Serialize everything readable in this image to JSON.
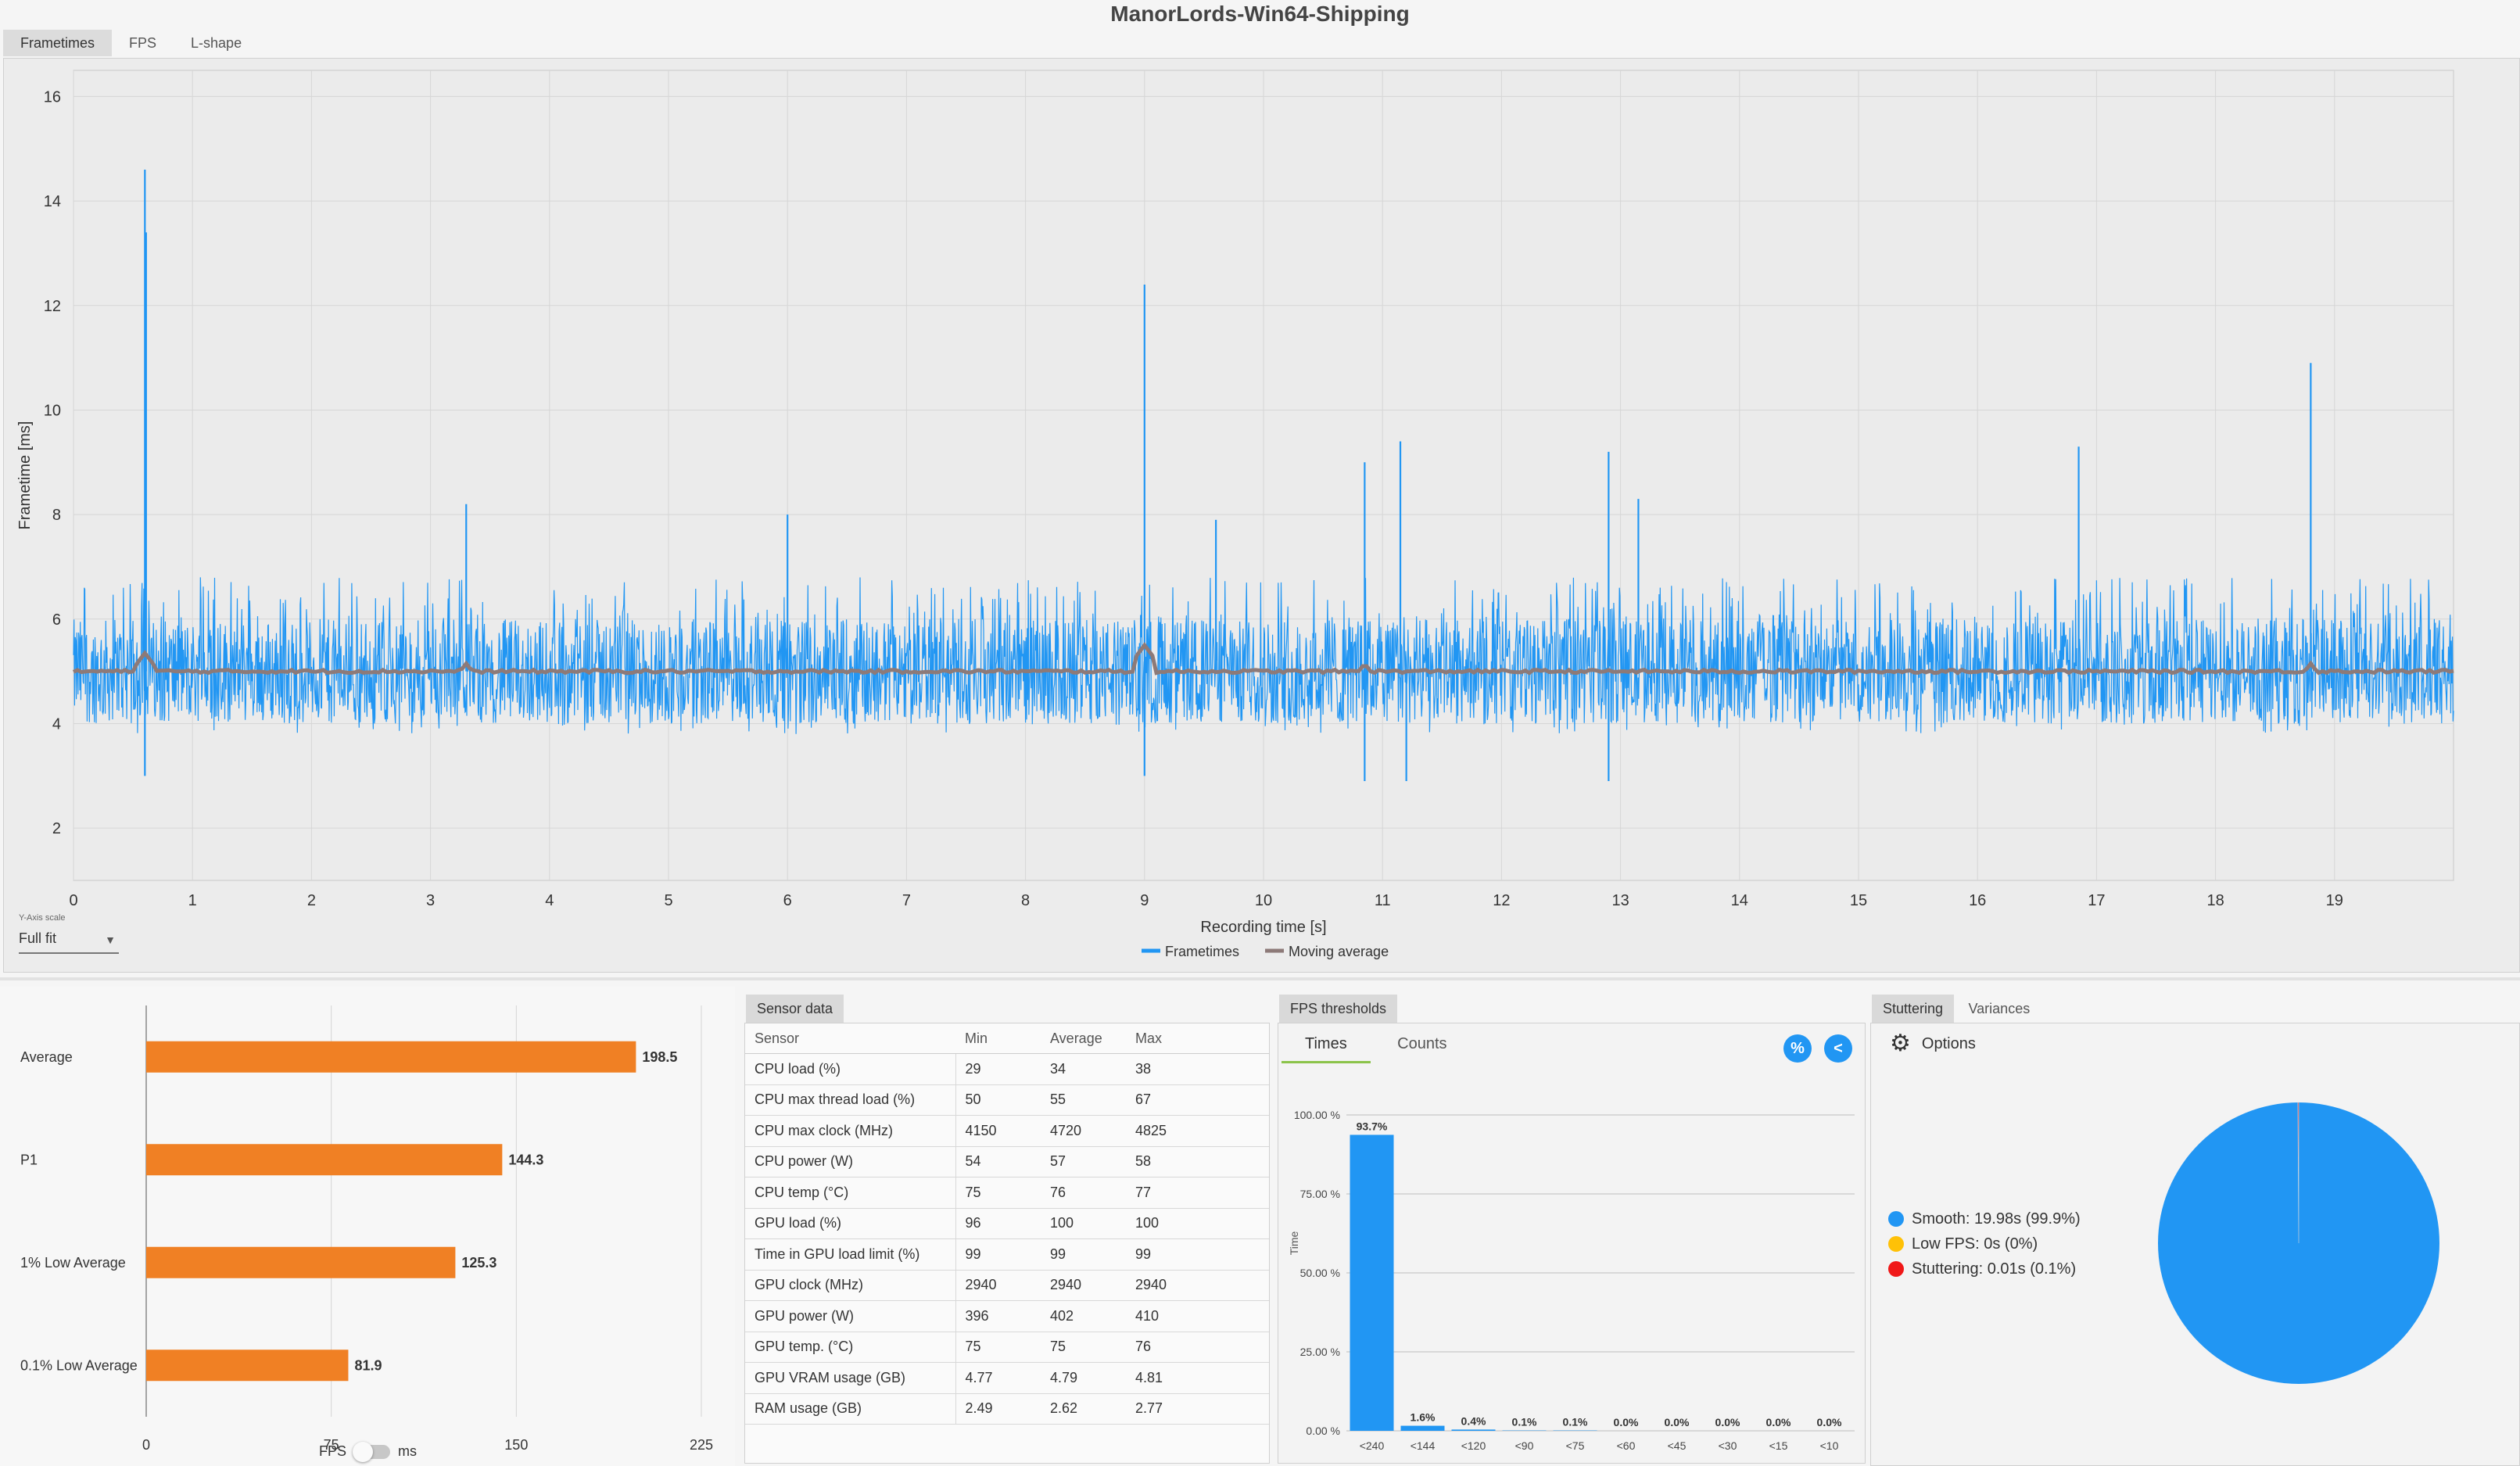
{
  "app_title": "ManorLords-Win64-Shipping",
  "main_tabs": [
    "Frametimes",
    "FPS",
    "L-shape"
  ],
  "y_axis_scale": {
    "label": "Y-Axis scale",
    "value": "Full fit"
  },
  "colors": {
    "frametimes": "#2196f3",
    "moving_average": "#8d7a78",
    "bars": "#f08024",
    "smooth": "#2196f3",
    "low_fps": "#ffc107",
    "stuttering": "#f01818"
  },
  "chart_data": [
    {
      "type": "line",
      "title": "",
      "xlabel": "Recording time [s]",
      "ylabel": "Frametime [ms]",
      "xlim": [
        0,
        20
      ],
      "ylim": [
        1,
        16.5
      ],
      "x_ticks": [
        "0",
        "1",
        "2",
        "3",
        "4",
        "5",
        "6",
        "7",
        "8",
        "9",
        "10",
        "11",
        "12",
        "13",
        "14",
        "15",
        "16",
        "17",
        "18",
        "19"
      ],
      "y_ticks": [
        "2",
        "4",
        "6",
        "8",
        "10",
        "12",
        "14",
        "16"
      ],
      "grid": true,
      "legend": "bottom-center",
      "series": [
        {
          "name": "Frametimes",
          "baseline": 5.0,
          "typical_range": [
            3.8,
            6.8
          ],
          "spikes": [
            [
              0.6,
              14.6
            ],
            [
              0.61,
              13.4
            ],
            [
              0.6,
              3.0
            ],
            [
              3.3,
              8.2
            ],
            [
              6.0,
              8.0
            ],
            [
              9.0,
              12.4
            ],
            [
              9.0,
              3.0
            ],
            [
              9.6,
              7.9
            ],
            [
              10.85,
              9.0
            ],
            [
              11.15,
              9.4
            ],
            [
              10.85,
              2.9
            ],
            [
              11.2,
              2.9
            ],
            [
              12.9,
              9.2
            ],
            [
              12.9,
              2.9
            ],
            [
              13.15,
              8.3
            ],
            [
              16.85,
              9.3
            ],
            [
              18.8,
              10.9
            ]
          ]
        },
        {
          "name": "Moving average",
          "baseline": 5.0,
          "bumps": [
            [
              0.6,
              5.35
            ],
            [
              3.3,
              5.15
            ],
            [
              9.0,
              5.5
            ],
            [
              10.85,
              5.15
            ],
            [
              18.8,
              5.15
            ]
          ]
        }
      ],
      "legend_entries": [
        "Frametimes",
        "Moving average"
      ]
    },
    {
      "type": "bar",
      "orientation": "horizontal",
      "categories": [
        "Average",
        "P1",
        "1% Low Average",
        "0.1% Low Average"
      ],
      "values": [
        198.5,
        144.3,
        125.3,
        81.9
      ],
      "x_ticks": [
        "0",
        "75",
        "150",
        "225"
      ],
      "xlim": [
        0,
        225
      ],
      "toggle": {
        "left": "FPS",
        "right": "ms"
      }
    },
    {
      "type": "bar",
      "categories": [
        "<240",
        "<144",
        "<120",
        "<90",
        "<75",
        "<60",
        "<45",
        "<30",
        "<15",
        "<10"
      ],
      "values": [
        93.7,
        1.6,
        0.4,
        0.1,
        0.1,
        0.0,
        0.0,
        0.0,
        0.0,
        0.0
      ],
      "value_labels": [
        "93.7%",
        "1.6%",
        "0.4%",
        "0.1%",
        "0.1%",
        "0.0%",
        "0.0%",
        "0.0%",
        "0.0%",
        "0.0%"
      ],
      "ylabel": "Time",
      "ylim": [
        0,
        100
      ],
      "y_ticks": [
        "0.00 %",
        "25.00 %",
        "50.00 %",
        "75.00 %",
        "100.00 %"
      ]
    },
    {
      "type": "pie",
      "categories": [
        "Smooth",
        "Low FPS",
        "Stuttering"
      ],
      "values": [
        99.9,
        0,
        0.1
      ]
    }
  ],
  "sensor_panel": {
    "tab": "Sensor data",
    "columns": [
      "Sensor",
      "Min",
      "Average",
      "Max"
    ],
    "rows": [
      [
        "CPU load (%)",
        "29",
        "34",
        "38"
      ],
      [
        "CPU max thread load (%)",
        "50",
        "55",
        "67"
      ],
      [
        "CPU max clock (MHz)",
        "4150",
        "4720",
        "4825"
      ],
      [
        "CPU power (W)",
        "54",
        "57",
        "58"
      ],
      [
        "CPU temp (°C)",
        "75",
        "76",
        "77"
      ],
      [
        "GPU load (%)",
        "96",
        "100",
        "100"
      ],
      [
        "Time in GPU load limit (%)",
        "99",
        "99",
        "99"
      ],
      [
        "GPU clock (MHz)",
        "2940",
        "2940",
        "2940"
      ],
      [
        "GPU power (W)",
        "396",
        "402",
        "410"
      ],
      [
        "GPU temp. (°C)",
        "75",
        "75",
        "76"
      ],
      [
        "GPU VRAM usage (GB)",
        "4.77",
        "4.79",
        "4.81"
      ],
      [
        "RAM usage (GB)",
        "2.49",
        "2.62",
        "2.77"
      ]
    ]
  },
  "thresholds_panel": {
    "tab": "FPS thresholds",
    "subtabs": [
      "Times",
      "Counts"
    ],
    "percent_button": "%",
    "back_button": "<"
  },
  "stutter_panel": {
    "tabs": [
      "Stuttering",
      "Variances"
    ],
    "options_label": "Options",
    "legend": [
      "Smooth:  19.98s (99.9%)",
      "Low FPS:  0s (0%)",
      "Stuttering:  0.01s (0.1%)"
    ]
  }
}
